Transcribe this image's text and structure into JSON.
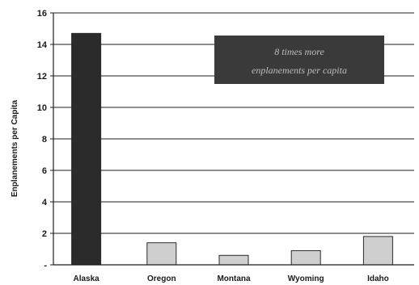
{
  "chart_data": {
    "type": "bar",
    "categories": [
      "Alaska",
      "Oregon",
      "Montana",
      "Wyoming",
      "Idaho"
    ],
    "values": [
      14.7,
      1.4,
      0.6,
      0.9,
      1.8
    ],
    "ylabel": "Enplanements per Capita",
    "ylim": [
      0,
      16
    ],
    "yticks": [
      0,
      2,
      4,
      6,
      8,
      10,
      12,
      14,
      16
    ],
    "ytick_labels": [
      "-",
      "2",
      "4",
      "6",
      "8",
      "10",
      "12",
      "14",
      "16"
    ],
    "grid": true,
    "annotation": {
      "lines": [
        "8 times more",
        "enplanements per capita"
      ]
    },
    "colors": {
      "highlight_bar": "#2b2b2b",
      "other_bars": "#cfcfcf",
      "annotation_box": "#3a3a3a",
      "grid": "#1e1e1e"
    }
  }
}
